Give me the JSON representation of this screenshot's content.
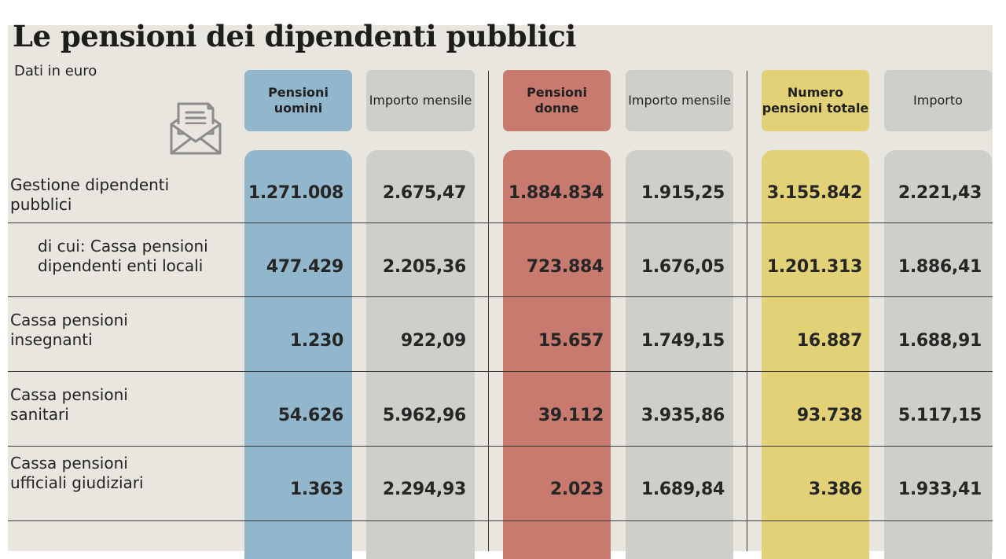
{
  "title": "Le pensioni dei dipendenti pubblici",
  "subtitle": "Dati in euro",
  "colors": {
    "men": "#92b6cb",
    "women": "#c97a6e",
    "total": "#e3d178",
    "neutral": "#cfcfc9",
    "background": "#e8e6df"
  },
  "icon": "envelope-letter-icon",
  "chart_data": {
    "type": "table",
    "title": "Le pensioni dei dipendenti pubblici",
    "subtitle": "Dati in euro",
    "columns": [
      "Pensioni uomini",
      "Importo mensile",
      "Pensioni donne",
      "Importo mensile",
      "Numero pensioni totale",
      "Importo"
    ],
    "rows": [
      {
        "label": "Gestione dipendenti pubblici",
        "values": [
          "1.271.008",
          "2.675,47",
          "1.884.834",
          "1.915,25",
          "3.155.842",
          "2.221,43"
        ]
      },
      {
        "label": "di cui: Cassa pensioni dipendenti enti locali",
        "values": [
          "477.429",
          "2.205,36",
          "723.884",
          "1.676,05",
          "1.201.313",
          "1.886,41"
        ]
      },
      {
        "label": "Cassa pensioni insegnanti",
        "values": [
          "1.230",
          "922,09",
          "15.657",
          "1.749,15",
          "16.887",
          "1.688,91"
        ]
      },
      {
        "label": "Cassa pensioni sanitari",
        "values": [
          "54.626",
          "5.962,96",
          "39.112",
          "3.935,86",
          "93.738",
          "5.117,15"
        ]
      },
      {
        "label": "Cassa pensioni ufficiali giudiziari",
        "values": [
          "1.363",
          "2.294,93",
          "2.023",
          "1.689,84",
          "3.386",
          "1.933,41"
        ]
      }
    ]
  }
}
